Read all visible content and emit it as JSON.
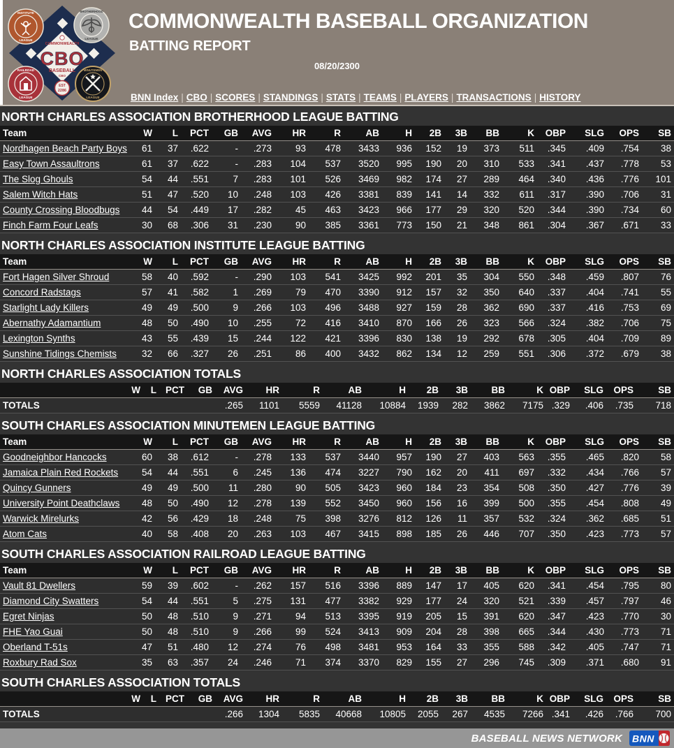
{
  "header": {
    "title": "COMMONWEALTH BASEBALL ORGANIZATION",
    "subtitle": "BATTING REPORT",
    "date": "08/20/2300",
    "nav": [
      "BNN Index",
      "CBO",
      "SCORES",
      "STANDINGS",
      "STATS",
      "TEAMS",
      "PLAYERS",
      "TRANSACTIONS",
      "HISTORY"
    ],
    "logo": {
      "org_top": "COMMONWEALTH",
      "org_main": "CBO",
      "org_sub": "BASEBALL",
      "org_small": "CBO",
      "est_line1": "EST",
      "est_line2": "2286",
      "badge_tl_line1": "INSTITUTE",
      "badge_tl_line2": "LEAGUE",
      "badge_tr_line1": "BROTHERHOOD",
      "badge_tr_line2": "LEAGUE",
      "badge_bl_line1": "RAILROAD",
      "badge_bl_line2": "LEAGUE",
      "badge_br_line1": "MINUTEMEN",
      "badge_br_line2": "LEAGUE"
    }
  },
  "columns": {
    "team": "Team",
    "stats": [
      "W",
      "L",
      "PCT",
      "GB",
      "AVG",
      "HR",
      "R",
      "AB",
      "H",
      "2B",
      "3B",
      "BB",
      "K",
      "OBP",
      "SLG",
      "OPS",
      "SB"
    ]
  },
  "sections": [
    {
      "type": "league",
      "title": "NORTH CHARLES ASSOCIATION BROTHERHOOD LEAGUE BATTING",
      "teams": [
        {
          "name": "Nordhagen Beach Party Boys",
          "stats": [
            "61",
            "37",
            ".622",
            "-",
            ".273",
            "93",
            "478",
            "3433",
            "936",
            "152",
            "19",
            "373",
            "511",
            ".345",
            ".409",
            ".754",
            "38"
          ]
        },
        {
          "name": "Easy Town Assaultrons",
          "stats": [
            "61",
            "37",
            ".622",
            "-",
            ".283",
            "104",
            "537",
            "3520",
            "995",
            "190",
            "20",
            "310",
            "533",
            ".341",
            ".437",
            ".778",
            "53"
          ]
        },
        {
          "name": "The Slog Ghouls",
          "stats": [
            "54",
            "44",
            ".551",
            "7",
            ".283",
            "101",
            "526",
            "3469",
            "982",
            "174",
            "27",
            "289",
            "464",
            ".340",
            ".436",
            ".776",
            "101"
          ]
        },
        {
          "name": "Salem Witch Hats",
          "stats": [
            "51",
            "47",
            ".520",
            "10",
            ".248",
            "103",
            "426",
            "3381",
            "839",
            "141",
            "14",
            "332",
            "611",
            ".317",
            ".390",
            ".706",
            "31"
          ]
        },
        {
          "name": "County Crossing Bloodbugs",
          "stats": [
            "44",
            "54",
            ".449",
            "17",
            ".282",
            "45",
            "463",
            "3423",
            "966",
            "177",
            "29",
            "320",
            "520",
            ".344",
            ".390",
            ".734",
            "60"
          ]
        },
        {
          "name": "Finch Farm Four Leafs",
          "stats": [
            "30",
            "68",
            ".306",
            "31",
            ".230",
            "90",
            "385",
            "3361",
            "773",
            "150",
            "21",
            "348",
            "861",
            ".304",
            ".367",
            ".671",
            "33"
          ]
        }
      ]
    },
    {
      "type": "league",
      "title": "NORTH CHARLES ASSOCIATION INSTITUTE LEAGUE BATTING",
      "teams": [
        {
          "name": "Fort Hagen Silver Shroud",
          "stats": [
            "58",
            "40",
            ".592",
            "-",
            ".290",
            "103",
            "541",
            "3425",
            "992",
            "201",
            "35",
            "304",
            "550",
            ".348",
            ".459",
            ".807",
            "76"
          ]
        },
        {
          "name": "Concord Radstags",
          "stats": [
            "57",
            "41",
            ".582",
            "1",
            ".269",
            "79",
            "470",
            "3390",
            "912",
            "157",
            "32",
            "350",
            "640",
            ".337",
            ".404",
            ".741",
            "55"
          ]
        },
        {
          "name": "Starlight Lady Killers",
          "stats": [
            "49",
            "49",
            ".500",
            "9",
            ".266",
            "103",
            "496",
            "3488",
            "927",
            "159",
            "28",
            "362",
            "690",
            ".337",
            ".416",
            ".753",
            "69"
          ]
        },
        {
          "name": "Abernathy Adamantium",
          "stats": [
            "48",
            "50",
            ".490",
            "10",
            ".255",
            "72",
            "416",
            "3410",
            "870",
            "166",
            "26",
            "323",
            "566",
            ".324",
            ".382",
            ".706",
            "75"
          ]
        },
        {
          "name": "Lexington Synths",
          "stats": [
            "43",
            "55",
            ".439",
            "15",
            ".244",
            "122",
            "421",
            "3396",
            "830",
            "138",
            "19",
            "292",
            "678",
            ".305",
            ".404",
            ".709",
            "89"
          ]
        },
        {
          "name": "Sunshine Tidings Chemists",
          "stats": [
            "32",
            "66",
            ".327",
            "26",
            ".251",
            "86",
            "400",
            "3432",
            "862",
            "134",
            "12",
            "259",
            "551",
            ".306",
            ".372",
            ".679",
            "38"
          ]
        }
      ]
    },
    {
      "type": "totals",
      "title": "NORTH CHARLES ASSOCIATION TOTALS",
      "rows": [
        {
          "label": "TOTALS",
          "stats": [
            "",
            "",
            "",
            "",
            ".265",
            "1101",
            "5559",
            "41128",
            "10884",
            "1939",
            "282",
            "3862",
            "7175",
            ".329",
            ".406",
            ".735",
            "718"
          ]
        }
      ]
    },
    {
      "type": "league",
      "title": "SOUTH CHARLES ASSOCIATION MINUTEMEN LEAGUE BATTING",
      "teams": [
        {
          "name": "Goodneighbor Hancocks",
          "stats": [
            "60",
            "38",
            ".612",
            "-",
            ".278",
            "133",
            "537",
            "3440",
            "957",
            "190",
            "27",
            "403",
            "563",
            ".355",
            ".465",
            ".820",
            "58"
          ]
        },
        {
          "name": "Jamaica Plain Red Rockets",
          "stats": [
            "54",
            "44",
            ".551",
            "6",
            ".245",
            "136",
            "474",
            "3227",
            "790",
            "162",
            "20",
            "411",
            "697",
            ".332",
            ".434",
            ".766",
            "57"
          ]
        },
        {
          "name": "Quincy Gunners",
          "stats": [
            "49",
            "49",
            ".500",
            "11",
            ".280",
            "90",
            "505",
            "3423",
            "960",
            "184",
            "23",
            "354",
            "508",
            ".350",
            ".427",
            ".776",
            "39"
          ]
        },
        {
          "name": "University Point Deathclaws",
          "stats": [
            "48",
            "50",
            ".490",
            "12",
            ".278",
            "139",
            "552",
            "3450",
            "960",
            "156",
            "16",
            "399",
            "500",
            ".355",
            ".454",
            ".808",
            "49"
          ]
        },
        {
          "name": "Warwick Mirelurks",
          "stats": [
            "42",
            "56",
            ".429",
            "18",
            ".248",
            "75",
            "398",
            "3276",
            "812",
            "126",
            "11",
            "357",
            "532",
            ".324",
            ".362",
            ".685",
            "51"
          ]
        },
        {
          "name": "Atom Cats",
          "stats": [
            "40",
            "58",
            ".408",
            "20",
            ".263",
            "103",
            "467",
            "3415",
            "898",
            "185",
            "26",
            "446",
            "707",
            ".350",
            ".423",
            ".773",
            "57"
          ]
        }
      ]
    },
    {
      "type": "league",
      "title": "SOUTH CHARLES ASSOCIATION RAILROAD LEAGUE BATTING",
      "teams": [
        {
          "name": "Vault 81 Dwellers",
          "stats": [
            "59",
            "39",
            ".602",
            "-",
            ".262",
            "157",
            "516",
            "3396",
            "889",
            "147",
            "17",
            "405",
            "620",
            ".341",
            ".454",
            ".795",
            "80"
          ]
        },
        {
          "name": "Diamond City Swatters",
          "stats": [
            "54",
            "44",
            ".551",
            "5",
            ".275",
            "131",
            "477",
            "3382",
            "929",
            "177",
            "24",
            "320",
            "521",
            ".339",
            ".457",
            ".797",
            "46"
          ]
        },
        {
          "name": "Egret Ninjas",
          "stats": [
            "50",
            "48",
            ".510",
            "9",
            ".271",
            "94",
            "513",
            "3395",
            "919",
            "205",
            "15",
            "391",
            "620",
            ".347",
            ".423",
            ".770",
            "30"
          ]
        },
        {
          "name": "FHE Yao Guai",
          "stats": [
            "50",
            "48",
            ".510",
            "9",
            ".266",
            "99",
            "524",
            "3413",
            "909",
            "204",
            "28",
            "398",
            "665",
            ".344",
            ".430",
            ".773",
            "71"
          ]
        },
        {
          "name": "Oberland T-51s",
          "stats": [
            "47",
            "51",
            ".480",
            "12",
            ".274",
            "76",
            "498",
            "3481",
            "953",
            "164",
            "33",
            "355",
            "588",
            ".342",
            ".405",
            ".747",
            "71"
          ]
        },
        {
          "name": "Roxbury Rad Sox",
          "stats": [
            "35",
            "63",
            ".357",
            "24",
            ".246",
            "71",
            "374",
            "3370",
            "829",
            "155",
            "27",
            "296",
            "745",
            ".309",
            ".371",
            ".680",
            "91"
          ]
        }
      ]
    },
    {
      "type": "totals",
      "title": "SOUTH CHARLES ASSOCIATION TOTALS",
      "rows": [
        {
          "label": "TOTALS",
          "stats": [
            "",
            "",
            "",
            "",
            ".266",
            "1304",
            "5835",
            "40668",
            "10805",
            "2055",
            "267",
            "4535",
            "7266",
            ".341",
            ".426",
            ".766",
            "700"
          ]
        }
      ]
    }
  ],
  "footer": {
    "brand": "BASEBALL NEWS NETWORK",
    "logo_text": "BNN"
  },
  "colors": {
    "header_bg": "#8a8077",
    "page_bg": "#333333",
    "row_bg": "#2e2e2e",
    "thead_bg": "#161616",
    "footer_bg": "#969696",
    "logo_navy": "#1d2d4e",
    "logo_red": "#a8323a",
    "badge_orange": "#b0572e",
    "badge_silver": "#b3b3b1",
    "badge_black": "#15171c",
    "badge_gold": "#c2a269",
    "bnn_blue": "#1458bd",
    "bnn_red": "#c1272d"
  }
}
